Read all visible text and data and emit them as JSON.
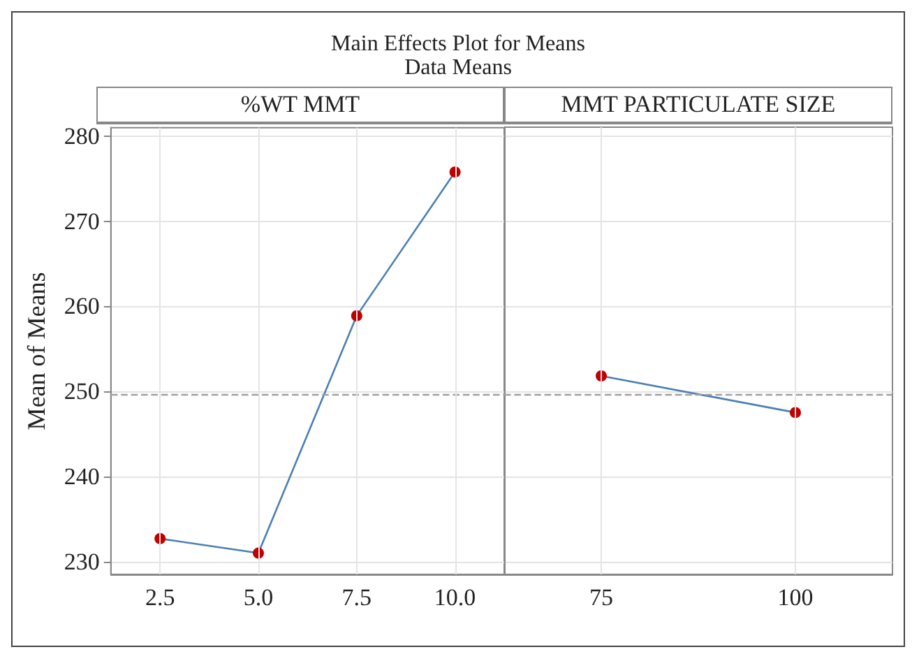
{
  "chart_data": [
    {
      "type": "line",
      "title": "Main Effects Plot for Means",
      "subtitle": "Data Means",
      "xlabel": "%WT MMT",
      "ylabel": "Mean of Means",
      "categories": [
        "2.5",
        "5.0",
        "7.5",
        "10.0"
      ],
      "series": [
        {
          "color": "#4a7fb5",
          "colors": [
            "#c00000",
            "#c00000",
            "#c00000",
            "#c00000"
          ],
          "values": [
            232.7,
            231.0,
            258.9,
            275.8
          ]
        }
      ],
      "ylim": [
        228.5,
        281
      ],
      "yticks": [
        230,
        240,
        250,
        260,
        270,
        280
      ],
      "grid": true,
      "marker": "circle",
      "line_style": "solid",
      "ref_lines": [
        {
          "axis": "y",
          "value": 249.7,
          "color": "#a0a0a0",
          "line_style": "dashed"
        }
      ]
    },
    {
      "type": "line",
      "xlabel": "MMT PARTICULATE SIZE",
      "categories": [
        "75",
        "100"
      ],
      "series": [
        {
          "color": "#4a7fb5",
          "colors": [
            "#c00000",
            "#c00000"
          ],
          "values": [
            251.8,
            247.5
          ]
        }
      ],
      "ylim": [
        228.5,
        281
      ],
      "yticks": [
        230,
        240,
        250,
        260,
        270,
        280
      ],
      "tick_labels": "x",
      "grid": true,
      "marker": "circle",
      "line_style": "solid",
      "ref_lines": [
        {
          "axis": "y",
          "value": 249.7,
          "color": "#a0a0a0",
          "line_style": "dashed"
        }
      ]
    }
  ]
}
